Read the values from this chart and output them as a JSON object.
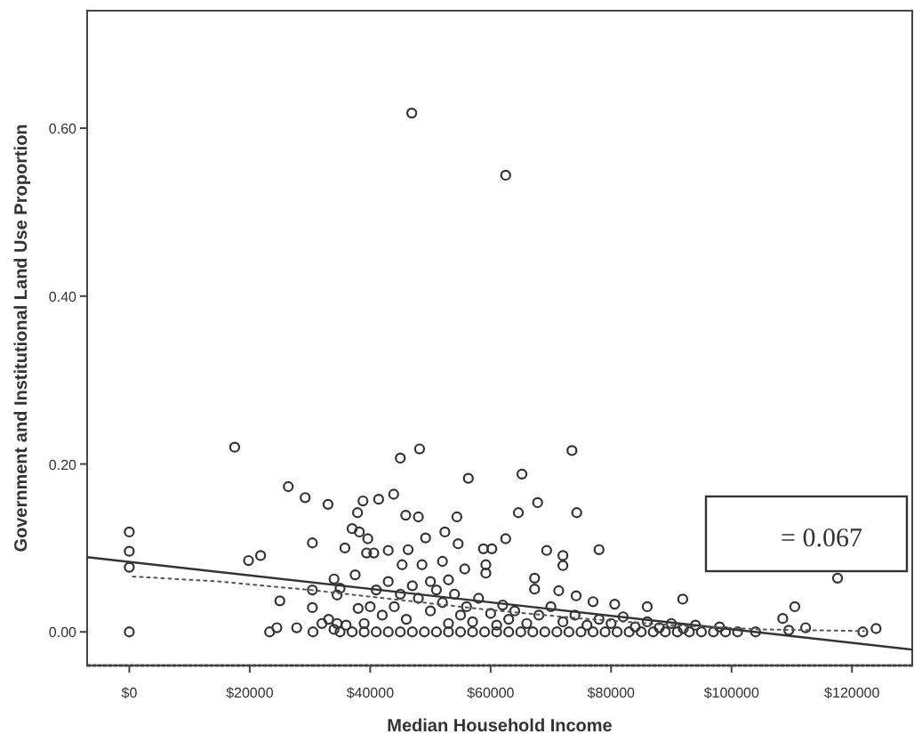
{
  "chart_data": {
    "type": "scatter",
    "xlabel": "Median Household Income",
    "ylabel": "Government and Institutional Land Use Proportion",
    "xlim": [
      -7000,
      130000
    ],
    "ylim": [
      -0.04,
      0.74
    ],
    "xticks": [
      {
        "value": 0,
        "label": "$0"
      },
      {
        "value": 20000,
        "label": "$20000"
      },
      {
        "value": 40000,
        "label": "$40000"
      },
      {
        "value": 60000,
        "label": "$60000"
      },
      {
        "value": 80000,
        "label": "$80000"
      },
      {
        "value": 100000,
        "label": "$100000"
      },
      {
        "value": 120000,
        "label": "$120000"
      }
    ],
    "yticks": [
      {
        "value": 0,
        "label": "0.00"
      },
      {
        "value": 0.2,
        "label": "0.20"
      },
      {
        "value": 0.4,
        "label": "0.40"
      },
      {
        "value": 0.6,
        "label": "0.60"
      }
    ],
    "grid": false,
    "annotations": [
      "= 0.067"
    ],
    "series": [
      {
        "color": "#333333",
        "marker": "circle",
        "x": [
          0,
          0,
          0,
          0,
          17500,
          19800,
          21800,
          25000,
          23300,
          24500,
          27800,
          26400,
          29200,
          30400,
          33000,
          30400,
          30400,
          30500,
          32000,
          33100,
          34500,
          34000,
          35000,
          34500,
          35800,
          37000,
          37900,
          38200,
          39600,
          38800,
          41400,
          43900,
          37500,
          39400,
          40600,
          43000,
          45000,
          48200,
          45900,
          48000,
          46300,
          49200,
          52400,
          54400,
          56300,
          54600,
          46900,
          62500,
          65200,
          64600,
          67800,
          73500,
          74300,
          62500,
          58800,
          60200,
          59200,
          59200,
          55700,
          52000,
          48600,
          45300,
          69300,
          72000,
          72000,
          78000,
          67300,
          67300,
          71300,
          74200,
          80600,
          86000,
          91900,
          77000,
          117600,
          110500,
          108500,
          112300,
          109500,
          121800,
          124000,
          35000,
          37000,
          39000,
          41000,
          43000,
          45000,
          47000,
          49000,
          51000,
          53000,
          55000,
          57000,
          59000,
          61000,
          63000,
          65000,
          67000,
          69000,
          71000,
          73000,
          75000,
          77000,
          79000,
          81000,
          83000,
          85000,
          87000,
          89000,
          91000,
          93000,
          95000,
          97000,
          99000,
          101000,
          104000,
          42000,
          44000,
          46000,
          48000,
          50000,
          52000,
          53000,
          54000,
          55000,
          56000,
          57000,
          58000,
          60000,
          61000,
          62000,
          63000,
          64000,
          66000,
          68000,
          70000,
          72000,
          74000,
          76000,
          78000,
          80000,
          82000,
          84000,
          86000,
          88000,
          90000,
          92000,
          94000,
          98000,
          41000,
          43000,
          45000,
          47000,
          50000,
          51000,
          53000,
          40000,
          39000,
          36000,
          38000,
          34000
        ],
        "values": [
          0,
          0.119,
          0.096,
          0.077,
          0.22,
          0.085,
          0.091,
          0.037,
          0,
          0.005,
          0.005,
          0.173,
          0.16,
          0.106,
          0.152,
          0.05,
          0.029,
          0,
          0.01,
          0.015,
          0.01,
          0.063,
          0.052,
          0.044,
          0.1,
          0.123,
          0.142,
          0.119,
          0.111,
          0.156,
          0.158,
          0.164,
          0.068,
          0.094,
          0.094,
          0.097,
          0.207,
          0.218,
          0.139,
          0.137,
          0.098,
          0.112,
          0.119,
          0.137,
          0.183,
          0.105,
          0.618,
          0.544,
          0.188,
          0.142,
          0.154,
          0.216,
          0.142,
          0.111,
          0.099,
          0.099,
          0.08,
          0.07,
          0.075,
          0.084,
          0.08,
          0.08,
          0.097,
          0.091,
          0.079,
          0.098,
          0.064,
          0.051,
          0.049,
          0.043,
          0.033,
          0.03,
          0.039,
          0.036,
          0.064,
          0.03,
          0.016,
          0.005,
          0.002,
          0,
          0.004,
          0,
          0,
          0,
          0,
          0,
          0,
          0,
          0,
          0,
          0,
          0,
          0,
          0,
          0,
          0,
          0,
          0,
          0,
          0,
          0,
          0,
          0,
          0,
          0,
          0,
          0,
          0,
          0,
          0,
          0,
          0,
          0,
          0,
          0,
          0,
          0.02,
          0.03,
          0.015,
          0.04,
          0.025,
          0.035,
          0.01,
          0.045,
          0.02,
          0.03,
          0.012,
          0.04,
          0.022,
          0.008,
          0.032,
          0.015,
          0.025,
          0.01,
          0.02,
          0.03,
          0.012,
          0.02,
          0.008,
          0.015,
          0.01,
          0.018,
          0.006,
          0.012,
          0.005,
          0.01,
          0.004,
          0.008,
          0.006,
          0.05,
          0.06,
          0.045,
          0.055,
          0.06,
          0.05,
          0.062,
          0.03,
          0.01,
          0.008,
          0.028,
          0.003
        ]
      },
      {
        "type": "line",
        "color": "#333333",
        "line_style": "solid",
        "x": [
          -7000,
          130000
        ],
        "values": [
          0.089,
          -0.021
        ]
      },
      {
        "type": "line",
        "color": "#555555",
        "line_style": "dotted",
        "x": [
          600,
          15000,
          30000,
          45000,
          60000,
          75000,
          90000,
          105000,
          122000
        ],
        "values": [
          0.066,
          0.06,
          0.05,
          0.038,
          0.026,
          0.016,
          0.008,
          0.003,
          0.001
        ]
      }
    ]
  }
}
